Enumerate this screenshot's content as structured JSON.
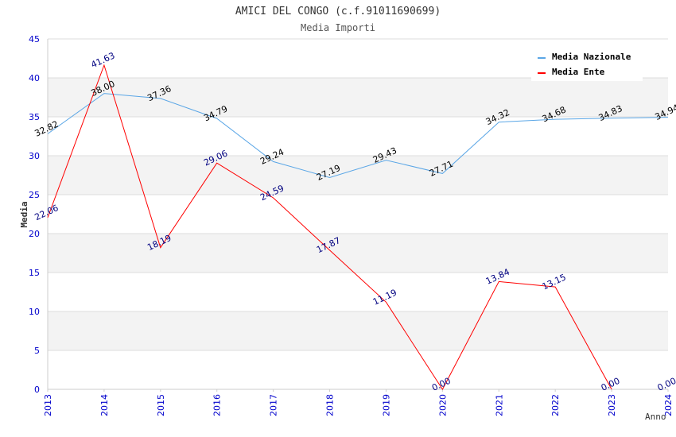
{
  "chart_data": {
    "type": "line",
    "title": "AMICI DEL CONGO (c.f.91011690699)",
    "subtitle": "Media Importi",
    "xlabel": "Anno",
    "ylabel": "Media",
    "categories": [
      "2013",
      "2014",
      "2015",
      "2016",
      "2017",
      "2018",
      "2019",
      "2020",
      "2021",
      "2022",
      "2023",
      "2024"
    ],
    "ylim": [
      0,
      45
    ],
    "yticks": [
      "0",
      "5",
      "10",
      "15",
      "20",
      "25",
      "30",
      "35",
      "40",
      "45"
    ],
    "grid": "horizontal-bands",
    "legend_position": "top-right",
    "series": [
      {
        "name": "Media Nazionale",
        "color": "#5aa6e6",
        "label_color": "#000000",
        "values": [
          32.82,
          38.0,
          37.36,
          34.79,
          29.24,
          27.19,
          29.43,
          27.71,
          34.32,
          34.68,
          34.83,
          34.94
        ],
        "labels": [
          "32.82",
          "38.00",
          "37.36",
          "34.79",
          "29.24",
          "27.19",
          "29.43",
          "27.71",
          "34.32",
          "34.68",
          "34.83",
          "34.94"
        ]
      },
      {
        "name": "Media Ente",
        "color": "#ff0000",
        "label_color": "#000080",
        "values": [
          22.06,
          41.63,
          18.19,
          29.06,
          24.59,
          17.87,
          11.19,
          0.0,
          13.84,
          13.15,
          0.0,
          0.0
        ],
        "labels": [
          "22.06",
          "41.63",
          "18.19",
          "29.06",
          "24.59",
          "17.87",
          "11.19",
          "0.00",
          "13.84",
          "13.15",
          "0.00",
          "0.00"
        ],
        "draw_line_points": 11
      }
    ],
    "colors": {
      "axis_text": "#0000cc",
      "band": "#f3f3f3",
      "gridline": "#dddddd",
      "axis": "#cccccc"
    }
  }
}
